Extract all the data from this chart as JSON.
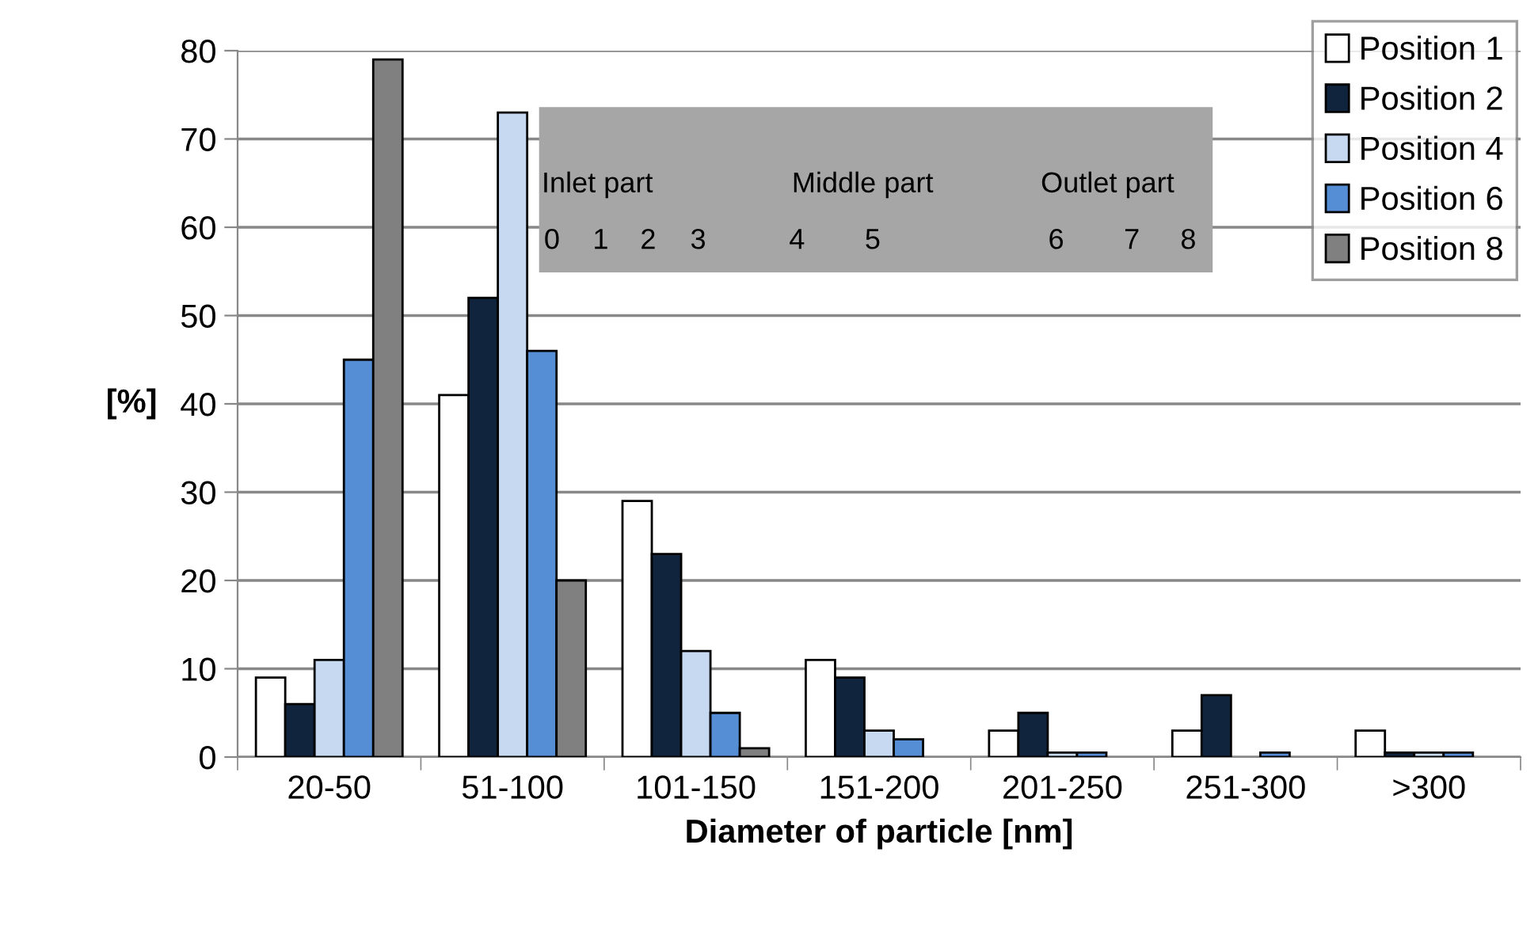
{
  "chart_data": {
    "type": "bar",
    "xlabel": "Diameter of particle [nm]",
    "ylabel": "[%]",
    "categories": [
      "20-50",
      "51-100",
      "101-150",
      "151-200",
      "201-250",
      "251-300",
      ">300"
    ],
    "series": [
      {
        "name": "Position 1",
        "color": "#ffffff",
        "values": [
          9,
          41,
          29,
          11,
          3,
          3,
          3
        ]
      },
      {
        "name": "Position 2",
        "color": "#10243e",
        "values": [
          6,
          52,
          23,
          9,
          5,
          7,
          0.5
        ]
      },
      {
        "name": "Position 4",
        "color": "#c6d9f1",
        "values": [
          11,
          73,
          12,
          3,
          0.5,
          null,
          0.5
        ]
      },
      {
        "name": "Position 6",
        "color": "#558ed5",
        "values": [
          45,
          46,
          5,
          2,
          0.5,
          0.5,
          0.5
        ]
      },
      {
        "name": "Position 8",
        "color": "#808080",
        "values": [
          79,
          20,
          1,
          null,
          null,
          null,
          null
        ]
      }
    ],
    "ylim": [
      0,
      80
    ],
    "yticks": [
      0,
      10,
      20,
      30,
      40,
      50,
      60,
      70,
      80
    ],
    "grid": "y",
    "legend": "top right",
    "annotations": [
      "Inlet part",
      "Middle part",
      "Outlet part",
      "0",
      "1",
      "2",
      "3",
      "4",
      "5",
      "6",
      "7",
      "8"
    ]
  }
}
